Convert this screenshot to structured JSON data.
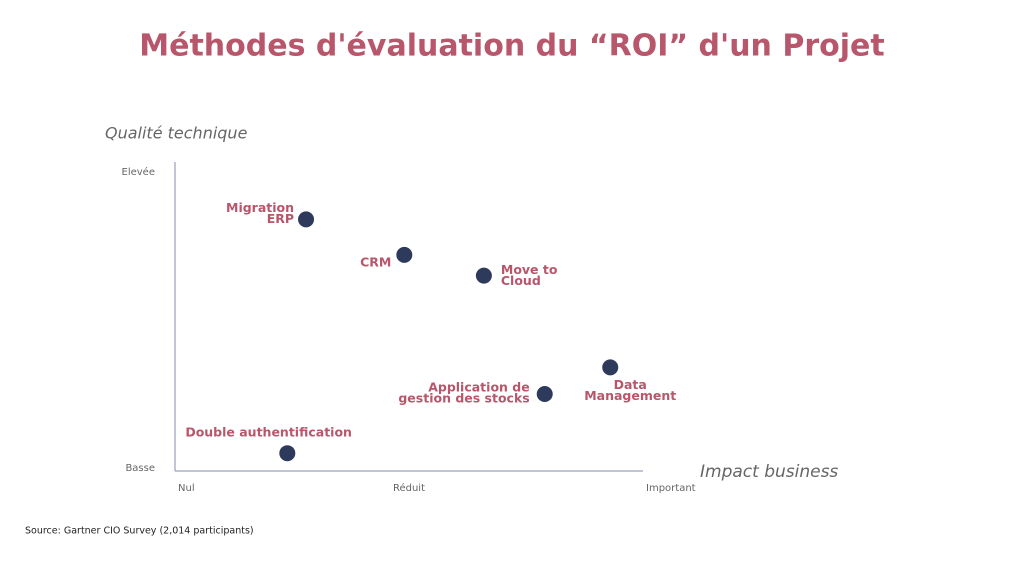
{
  "chart_data": {
    "type": "scatter",
    "title": "Méthodes d'évaluation du “ROI” d'un Projet",
    "x_label": "Impact business",
    "y_label": "Qualité technique",
    "source": "Source: Gartner CIO Survey (2,014 participants)",
    "xlim": [
      0,
      10
    ],
    "ylim": [
      0,
      10
    ],
    "xticks": [
      {
        "value": 0,
        "label": "Nul"
      },
      {
        "value": 5,
        "label": "Réduit"
      },
      {
        "value": 10,
        "label": "Important"
      }
    ],
    "yticks": [
      {
        "value": 0,
        "label": "Basse"
      },
      {
        "value": 10,
        "label": "Elevée"
      }
    ],
    "color": "#2e3a5c",
    "labels": [
      [
        "Migration",
        "ERP"
      ],
      [
        "CRM"
      ],
      [
        "Move to",
        "Cloud"
      ],
      [
        "Data",
        "Management"
      ],
      [
        "Application de",
        "gestion des stocks"
      ],
      [
        "Double authentification"
      ]
    ],
    "x": [
      2.8,
      4.9,
      6.6,
      9.3,
      7.9,
      2.4
    ],
    "values": [
      8.4,
      7.2,
      6.5,
      3.4,
      2.5,
      0.5
    ]
  }
}
